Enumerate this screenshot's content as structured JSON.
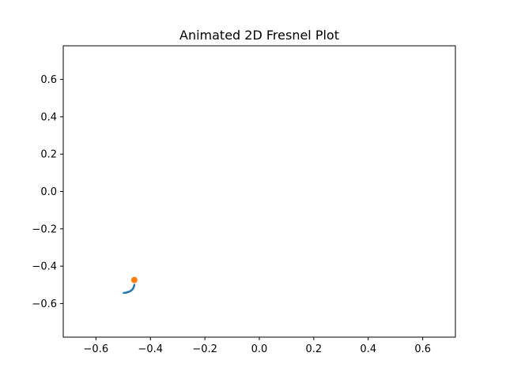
{
  "chart_data": {
    "type": "line",
    "title": "Animated 2D Fresnel Plot",
    "xlabel": "",
    "ylabel": "",
    "xlim": [
      -0.72,
      0.72
    ],
    "ylim": [
      -0.78,
      0.78
    ],
    "grid": false,
    "x_ticks": [
      -0.6,
      -0.4,
      -0.2,
      0.0,
      0.2,
      0.4,
      0.6
    ],
    "x_tick_labels": [
      "−0.6",
      "−0.4",
      "−0.2",
      "0.0",
      "0.2",
      "0.4",
      "0.6"
    ],
    "y_ticks": [
      -0.6,
      -0.4,
      -0.2,
      0.0,
      0.2,
      0.4,
      0.6
    ],
    "y_tick_labels": [
      "−0.6",
      "−0.4",
      "−0.2",
      "0.0",
      "0.2",
      "0.4",
      "0.6"
    ],
    "series": [
      {
        "type": "line",
        "color": "#1f77b4",
        "x": [
          -0.498,
          -0.49,
          -0.481,
          -0.472,
          -0.465,
          -0.461,
          -0.459
        ],
        "y": [
          -0.543,
          -0.542,
          -0.538,
          -0.532,
          -0.523,
          -0.512,
          -0.5
        ]
      },
      {
        "type": "scatter",
        "color": "#ff7f0e",
        "x": [
          -0.459
        ],
        "y": [
          -0.474
        ]
      }
    ]
  }
}
